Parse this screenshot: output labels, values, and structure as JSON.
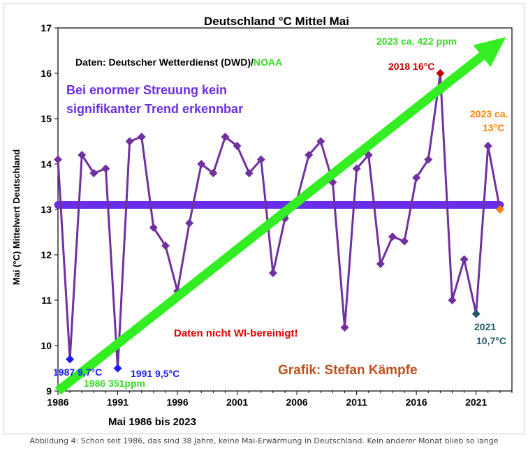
{
  "colors": {
    "series": "#7030a0",
    "mean": "#6a2ee8",
    "arrow": "#33ee22",
    "blue": "#1a1aff",
    "green": "#33dd22",
    "red": "#e00000",
    "darkred": "#c00000",
    "orange": "#ff8000",
    "teal": "#215a6a",
    "brown": "#c0501e"
  },
  "chart_data": {
    "type": "line",
    "title": "Deutschland °C Mittel Mai",
    "ylabel": "Mai (°C) Mittelwert Deutschland",
    "xlabel": "Mai 1986 bis 2023",
    "xlim": [
      1986,
      2024
    ],
    "ylim": [
      9,
      17
    ],
    "xticks": [
      1986,
      1991,
      1996,
      2001,
      2006,
      2011,
      2016,
      2021
    ],
    "yticks": [
      9,
      10,
      11,
      12,
      13,
      14,
      15,
      16,
      17
    ],
    "grid": false,
    "x": [
      1986,
      1987,
      1988,
      1989,
      1990,
      1991,
      1992,
      1993,
      1994,
      1995,
      1996,
      1997,
      1998,
      1999,
      2000,
      2001,
      2002,
      2003,
      2004,
      2005,
      2006,
      2007,
      2008,
      2009,
      2010,
      2011,
      2012,
      2013,
      2014,
      2015,
      2016,
      2017,
      2018,
      2019,
      2020,
      2021,
      2022,
      2023
    ],
    "values": [
      14.1,
      9.7,
      14.2,
      13.8,
      13.9,
      9.5,
      14.5,
      14.6,
      12.6,
      12.2,
      11.2,
      12.7,
      14.0,
      13.8,
      14.6,
      14.4,
      13.8,
      14.1,
      11.6,
      12.8,
      13.2,
      14.2,
      14.5,
      13.6,
      10.4,
      13.9,
      14.2,
      11.8,
      12.4,
      12.3,
      13.7,
      14.1,
      16.0,
      11.0,
      11.9,
      10.7,
      14.4,
      13.0
    ],
    "mean_line": 13.1,
    "trend_arrow": {
      "from": [
        1986,
        9.0
      ],
      "to": [
        2023.5,
        16.8
      ]
    },
    "annotations": {
      "source_prefix": "Daten: Deutscher Wetterdienst (DWD)/",
      "source_noaa": "NOAA",
      "statement_line1": "Bei enormer Streuung kein",
      "statement_line2": "signifikanter Trend erkennbar",
      "co2_2023": "2023 ca. 422 ppm",
      "co2_1986": "1986 351ppm",
      "label_2018": "2018 16°C",
      "label_2023_line1": "2023 ca.",
      "label_2023_line2": "13°C",
      "label_1987": "1987 9,7°C",
      "label_1991": "1991 9,5°C",
      "label_2021_line1": "2021",
      "label_2021_line2": "10,7°C",
      "wi_note": "Daten nicht WI-bereinigt!",
      "credit": "Grafik: Stefan Kämpfe"
    }
  },
  "caption": "Abbildung 4: Schon seit 1986, das sind 38 Jahre, keine Mai-Erwärmung in Deutschland. Kein anderer Monat blieb so lange"
}
